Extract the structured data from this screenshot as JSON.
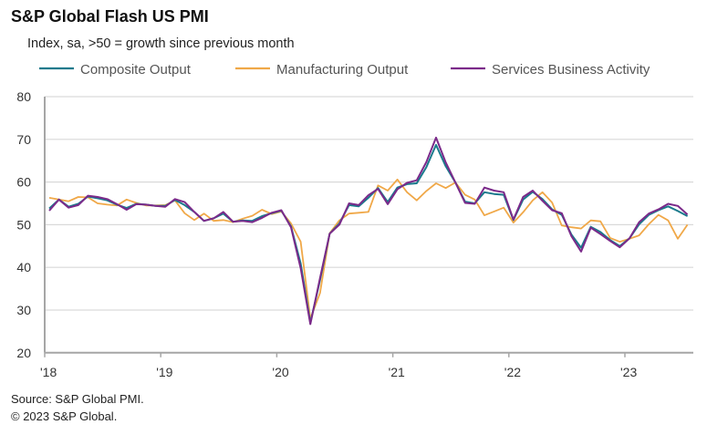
{
  "chart_data": {
    "type": "line",
    "title": "S&P Global Flash US PMI",
    "subtitle": "Index, sa, >50 = growth since previous month",
    "ylim": [
      20,
      80
    ],
    "yticks": [
      "20",
      "30",
      "40",
      "50",
      "60",
      "70",
      "80"
    ],
    "xticks": [
      "'18",
      "'19",
      "'20",
      "'21",
      "'22",
      "'23"
    ],
    "x_start": "2018-01",
    "x_end": "2023-07",
    "frequency": "monthly",
    "grid": true,
    "legend": "top",
    "series": [
      {
        "name": "Composite Output",
        "color": "#1a7a8c",
        "values": [
          53.8,
          55.9,
          54.2,
          54.9,
          56.6,
          56.2,
          55.7,
          54.7,
          53.9,
          54.9,
          54.7,
          54.4,
          54.4,
          55.8,
          54.6,
          53.0,
          50.9,
          51.5,
          52.6,
          50.7,
          51.0,
          50.9,
          52.0,
          52.7,
          53.3,
          49.6,
          40.9,
          27.0,
          37.0,
          47.9,
          50.3,
          54.6,
          54.3,
          56.3,
          58.6,
          55.3,
          58.7,
          59.5,
          59.7,
          63.5,
          68.7,
          63.7,
          59.9,
          55.4,
          55.0,
          57.6,
          57.2,
          57.0,
          51.1,
          55.9,
          57.7,
          56.0,
          53.6,
          52.3,
          47.7,
          44.6,
          49.5,
          48.3,
          46.4,
          45.0,
          46.8,
          50.1,
          52.3,
          53.4,
          54.3,
          53.2,
          52.0
        ]
      },
      {
        "name": "Manufacturing Output",
        "color": "#f0a848",
        "values": [
          56.3,
          55.9,
          55.5,
          56.5,
          56.4,
          55.0,
          54.7,
          54.5,
          55.9,
          55.1,
          54.5,
          54.5,
          54.6,
          55.7,
          52.7,
          51.1,
          52.6,
          50.9,
          51.1,
          50.6,
          51.4,
          52.1,
          53.5,
          52.5,
          53.1,
          50.3,
          46.0,
          28.0,
          34.0,
          48.0,
          51.0,
          52.6,
          52.8,
          53.0,
          59.2,
          58.0,
          60.6,
          57.6,
          55.7,
          57.9,
          59.7,
          58.6,
          59.9,
          57.0,
          55.9,
          52.2,
          53.1,
          54.0,
          50.5,
          52.9,
          55.7,
          57.6,
          55.2,
          49.8,
          49.4,
          49.1,
          51.0,
          50.8,
          46.9,
          46.0,
          46.7,
          47.5,
          50.1,
          52.3,
          51.0,
          46.7,
          50.0
        ]
      },
      {
        "name": "Services Business Activity",
        "color": "#7b2a8a",
        "values": [
          53.3,
          55.9,
          54.0,
          54.6,
          56.8,
          56.5,
          56.0,
          54.8,
          53.5,
          54.8,
          54.7,
          54.4,
          54.2,
          56.0,
          55.3,
          53.0,
          50.9,
          51.5,
          53.0,
          50.7,
          50.9,
          50.6,
          51.6,
          52.8,
          53.4,
          49.4,
          39.8,
          26.7,
          37.5,
          47.9,
          50.0,
          55.0,
          54.6,
          56.9,
          58.4,
          54.8,
          58.3,
          59.8,
          60.4,
          64.7,
          70.4,
          64.6,
          59.9,
          55.1,
          54.9,
          58.7,
          58.0,
          57.6,
          51.2,
          56.5,
          58.0,
          55.6,
          53.4,
          52.7,
          47.3,
          43.7,
          49.3,
          47.8,
          46.2,
          44.7,
          46.8,
          50.6,
          52.6,
          53.6,
          54.9,
          54.4,
          52.4
        ]
      }
    ]
  },
  "footer": {
    "source": "Source: S&P Global PMI.",
    "copyright": "© 2023 S&P Global."
  }
}
